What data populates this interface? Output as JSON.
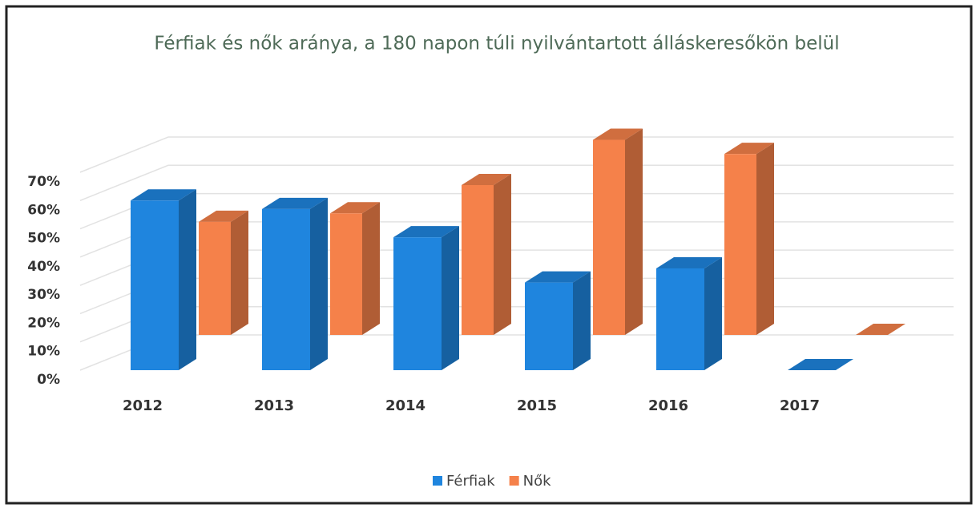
{
  "chart_data": {
    "type": "bar3d",
    "title": "Férfiak és nők aránya, a 180 napon túli nyilvántartott álláskeresőkön belül",
    "categories": [
      "2012",
      "2013",
      "2014",
      "2015",
      "2016",
      "2017"
    ],
    "series": [
      {
        "name": "Férfiak",
        "color": "#1f85de",
        "values": [
          60,
          57,
          47,
          31,
          36,
          0
        ]
      },
      {
        "name": "Nők",
        "color": "#f5814a",
        "values": [
          40,
          43,
          53,
          69,
          64,
          0
        ]
      }
    ],
    "ylim": [
      0,
      70
    ],
    "yticks": [
      {
        "value": 0,
        "label": "0%"
      },
      {
        "value": 10,
        "label": "10%"
      },
      {
        "value": 20,
        "label": "20%"
      },
      {
        "value": 30,
        "label": "30%"
      },
      {
        "value": 40,
        "label": "40%"
      },
      {
        "value": 50,
        "label": "50%"
      },
      {
        "value": 60,
        "label": "60%"
      },
      {
        "value": 70,
        "label": "70%"
      }
    ],
    "grid": true,
    "legend": "bottom"
  }
}
